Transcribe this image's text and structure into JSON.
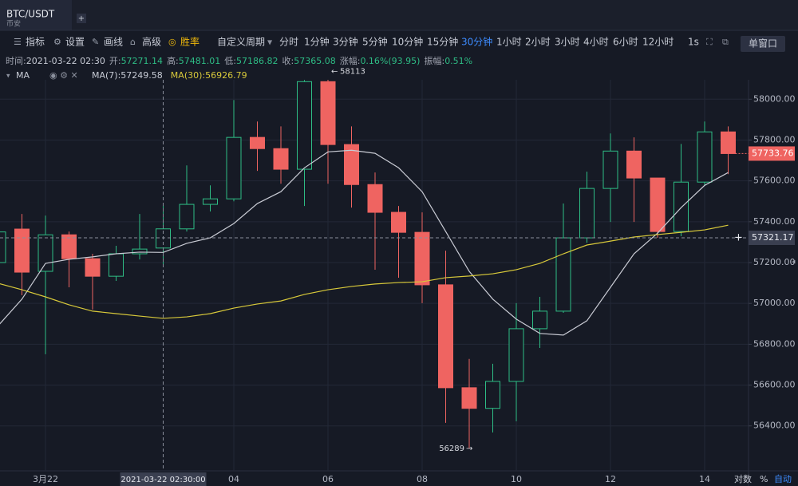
{
  "header": {
    "symbol": "BTC/USDT",
    "exchange": "币安"
  },
  "toolbar": {
    "tools": [
      "指标",
      "设置",
      "画线",
      "高级",
      "胜率"
    ],
    "custom_period": "自定义周期",
    "periods": [
      {
        "label": "分时"
      },
      {
        "label": "1分钟"
      },
      {
        "label": "3分钟"
      },
      {
        "label": "5分钟"
      },
      {
        "label": "10分钟"
      },
      {
        "label": "15分钟"
      },
      {
        "label": "30分钟",
        "selected": true
      },
      {
        "label": "1小时"
      },
      {
        "label": "2小时"
      },
      {
        "label": "3小时"
      },
      {
        "label": "4小时"
      },
      {
        "label": "6小时"
      },
      {
        "label": "12小时"
      }
    ],
    "seconds": "1s",
    "window_mode": "单窗口"
  },
  "info": [
    {
      "label": "时间:",
      "value": "2021-03-22 02:30"
    },
    {
      "label": "开:",
      "value": "57271.14"
    },
    {
      "label": "高:",
      "value": "57481.01"
    },
    {
      "label": "低:",
      "value": "57186.82"
    },
    {
      "label": "收:",
      "value": "57365.08"
    },
    {
      "label": "涨幅:",
      "value": "0.16%(93.95)"
    },
    {
      "label": "振幅:",
      "value": "0.51%"
    }
  ],
  "indicator": "MA",
  "footer": {
    "scale_options": [
      "对数",
      "%",
      "自动"
    ]
  },
  "chart_data": {
    "type": "candlestick",
    "categories": [
      null,
      null,
      "3月22",
      null,
      null,
      null,
      null,
      null,
      null,
      null,
      "04",
      null,
      null,
      null,
      "06",
      null,
      null,
      null,
      "08",
      null,
      null,
      null,
      "10",
      null,
      null,
      null,
      "12",
      null,
      null,
      null,
      "14",
      null
    ],
    "open": [
      57200,
      57364,
      57157,
      57336,
      57219,
      57133,
      57243,
      57271.14,
      57365,
      57485,
      57512,
      57813,
      57758,
      57657,
      58086,
      57778,
      57582,
      57446,
      57348,
      57091,
      56587,
      56486,
      56618,
      56876,
      56962,
      57321,
      57563,
      57746,
      57614,
      57352,
      57594,
      57840
    ],
    "high": [
      57400,
      57438,
      57430,
      57352,
      57243,
      57282,
      57438,
      57481.01,
      57676,
      57578,
      57996,
      57891,
      57867,
      58094,
      58113,
      57867,
      57641,
      57477,
      57446,
      57258,
      56728,
      56704,
      57001,
      57032,
      57489,
      57645,
      57832,
      57813,
      57614,
      57781,
      57891,
      57867
    ],
    "low": [
      57150,
      57040,
      56751,
      57079,
      56970,
      57110,
      57215,
      57186.82,
      57352,
      57450,
      57500,
      57649,
      57586,
      57477,
      57586,
      57469,
      57165,
      57126,
      57001,
      56415,
      56289,
      56368,
      56423,
      56782,
      56954,
      57297,
      57399,
      57399,
      57321,
      57329,
      57578,
      57633
    ],
    "close": [
      57350,
      57153,
      57336,
      57219,
      57133,
      57243,
      57266,
      57365.08,
      57485,
      57512,
      57813,
      57758,
      57657,
      58086,
      57778,
      57582,
      57446,
      57348,
      57091,
      56587,
      56486,
      56618,
      56876,
      56962,
      57321,
      57563,
      57746,
      57614,
      57352,
      57594,
      57840,
      57733.76
    ],
    "up_color": "#2ebd85",
    "down_color": "#ef6461",
    "series": [
      {
        "name": "MA(7):57249.58",
        "color": "#c9cbd4",
        "values": [
          56892,
          57021,
          57196,
          57216,
          57228,
          57243,
          57251,
          57249.58,
          57294,
          57321,
          57391,
          57489,
          57547,
          57664,
          57742,
          57750,
          57735,
          57664,
          57547,
          57352,
          57157,
          57021,
          56923,
          56853,
          56845,
          56915,
          57079,
          57243,
          57344,
          57469,
          57578,
          57641
        ]
      },
      {
        "name": "MA(30):56926.79",
        "color": "#d8c93a",
        "values": [
          57098,
          57067,
          57032,
          56993,
          56962,
          56950,
          56938,
          56926.79,
          56934,
          56950,
          56977,
          56997,
          57012,
          57044,
          57067,
          57083,
          57095,
          57102,
          57106,
          57126,
          57134,
          57145,
          57165,
          57196,
          57243,
          57286,
          57305,
          57325,
          57337,
          57348,
          57360,
          57383
        ]
      }
    ],
    "ylim": [
      56180,
      58095
    ],
    "yticks": [
      {
        "value": 56400,
        "label": "56400.00"
      },
      {
        "value": 56600,
        "label": "56600.00"
      },
      {
        "value": 56800,
        "label": "56800.00"
      },
      {
        "value": 57000,
        "label": "57000.00"
      },
      {
        "value": 57200,
        "label": "57200.00"
      },
      {
        "value": 57400,
        "label": "57400.00"
      },
      {
        "value": 57600,
        "label": "57600.00"
      },
      {
        "value": 57800,
        "label": "57800.00"
      },
      {
        "value": 58000,
        "label": "58000.00"
      }
    ],
    "grid": true,
    "crosshair": {
      "time_label": "2021-03-22 02:30:00",
      "price": 57321.17
    }
  }
}
